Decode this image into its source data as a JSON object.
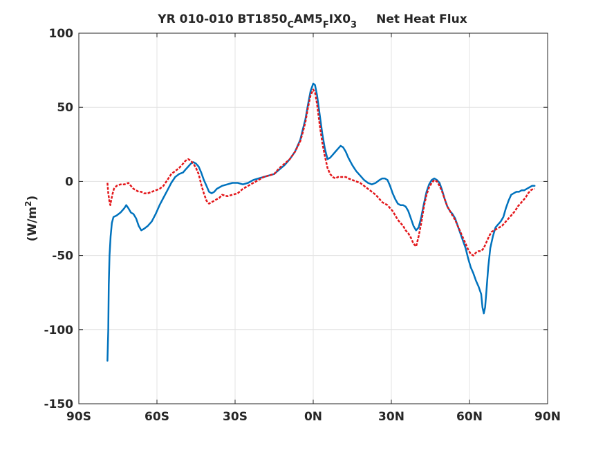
{
  "chart_data": {
    "type": "line",
    "title": {
      "prefix": "YR 010-010 BT1850",
      "sub1": "C",
      "mid1": "AM5",
      "sub2": "F",
      "mid2": "IX0",
      "sub3": "3",
      "suffix": "Net Heat Flux"
    },
    "ylabel": "(W/m",
    "ylabel_sup": "2",
    "ylabel_close": ")",
    "xlabel": "",
    "xlim": [
      -90,
      90
    ],
    "ylim": [
      -150,
      100
    ],
    "grid": true,
    "xticks": [
      {
        "value": -90,
        "label": "90S"
      },
      {
        "value": -60,
        "label": "60S"
      },
      {
        "value": -30,
        "label": "30S"
      },
      {
        "value": 0,
        "label": "0N"
      },
      {
        "value": 30,
        "label": "30N"
      },
      {
        "value": 60,
        "label": "60N"
      },
      {
        "value": 90,
        "label": "90N"
      }
    ],
    "yticks": [
      {
        "value": -150,
        "label": "-150"
      },
      {
        "value": -100,
        "label": "-100"
      },
      {
        "value": -50,
        "label": "-50"
      },
      {
        "value": 0,
        "label": "0"
      },
      {
        "value": 50,
        "label": "50"
      },
      {
        "value": 100,
        "label": "100"
      }
    ],
    "series": [
      {
        "color": "#0072BD",
        "style": "solid",
        "points": [
          [
            -79,
            -121
          ],
          [
            -78.7,
            -100
          ],
          [
            -78.5,
            -70
          ],
          [
            -78.2,
            -50
          ],
          [
            -77.8,
            -37
          ],
          [
            -77.3,
            -28
          ],
          [
            -76.7,
            -24
          ],
          [
            -75.5,
            -23
          ],
          [
            -74,
            -21
          ],
          [
            -72.5,
            -18
          ],
          [
            -71.8,
            -16
          ],
          [
            -71,
            -18
          ],
          [
            -70,
            -21
          ],
          [
            -69,
            -22
          ],
          [
            -68,
            -25
          ],
          [
            -67,
            -30
          ],
          [
            -66,
            -33
          ],
          [
            -65,
            -32
          ],
          [
            -63.5,
            -30
          ],
          [
            -62,
            -27
          ],
          [
            -60.5,
            -22
          ],
          [
            -59,
            -16
          ],
          [
            -57.5,
            -11
          ],
          [
            -56,
            -6
          ],
          [
            -54.5,
            -1
          ],
          [
            -53,
            3
          ],
          [
            -51.5,
            5
          ],
          [
            -50,
            6
          ],
          [
            -49,
            8
          ],
          [
            -48,
            10
          ],
          [
            -47,
            12
          ],
          [
            -46,
            13
          ],
          [
            -45,
            12
          ],
          [
            -44,
            10
          ],
          [
            -43,
            6
          ],
          [
            -42,
            1
          ],
          [
            -41,
            -3
          ],
          [
            -40,
            -7
          ],
          [
            -39,
            -8
          ],
          [
            -38,
            -7
          ],
          [
            -37,
            -5
          ],
          [
            -36,
            -4
          ],
          [
            -35,
            -3
          ],
          [
            -33,
            -2
          ],
          [
            -31,
            -1
          ],
          [
            -29,
            -1
          ],
          [
            -27,
            -2
          ],
          [
            -25,
            -1
          ],
          [
            -23,
            1
          ],
          [
            -21,
            2
          ],
          [
            -19,
            3
          ],
          [
            -17,
            4
          ],
          [
            -15,
            5
          ],
          [
            -13,
            8
          ],
          [
            -11,
            11
          ],
          [
            -9,
            15
          ],
          [
            -7,
            20
          ],
          [
            -5,
            28
          ],
          [
            -4,
            35
          ],
          [
            -3,
            42
          ],
          [
            -2,
            52
          ],
          [
            -1,
            61
          ],
          [
            0,
            66
          ],
          [
            0.7,
            65
          ],
          [
            1.5,
            58
          ],
          [
            2.5,
            45
          ],
          [
            3.5,
            32
          ],
          [
            4.5,
            22
          ],
          [
            5.5,
            15
          ],
          [
            6.5,
            16
          ],
          [
            7.5,
            18
          ],
          [
            8.5,
            20
          ],
          [
            9.5,
            22
          ],
          [
            10.5,
            24
          ],
          [
            11.5,
            23
          ],
          [
            12.5,
            20
          ],
          [
            13.5,
            16
          ],
          [
            15,
            11
          ],
          [
            16.5,
            7
          ],
          [
            18,
            4
          ],
          [
            19.5,
            1
          ],
          [
            21,
            -1
          ],
          [
            22.5,
            -2
          ],
          [
            24,
            -1
          ],
          [
            25.5,
            1
          ],
          [
            26.5,
            2
          ],
          [
            27.5,
            2
          ],
          [
            28.5,
            1
          ],
          [
            29.5,
            -3
          ],
          [
            30.5,
            -8
          ],
          [
            31.5,
            -12
          ],
          [
            32.5,
            -15
          ],
          [
            33.5,
            -16
          ],
          [
            34.5,
            -16
          ],
          [
            35.5,
            -17
          ],
          [
            36.5,
            -20
          ],
          [
            37.5,
            -25
          ],
          [
            38.5,
            -30
          ],
          [
            39.5,
            -33
          ],
          [
            40.5,
            -31
          ],
          [
            41.5,
            -24
          ],
          [
            42.5,
            -15
          ],
          [
            43.5,
            -7
          ],
          [
            44.5,
            -2
          ],
          [
            45.5,
            1
          ],
          [
            46.5,
            2
          ],
          [
            47.5,
            1
          ],
          [
            48.5,
            -1
          ],
          [
            49.5,
            -6
          ],
          [
            50.5,
            -12
          ],
          [
            51.5,
            -17
          ],
          [
            52.5,
            -20
          ],
          [
            53.5,
            -22
          ],
          [
            54.5,
            -25
          ],
          [
            55.5,
            -30
          ],
          [
            56.5,
            -35
          ],
          [
            57.5,
            -40
          ],
          [
            58.5,
            -45
          ],
          [
            59.5,
            -52
          ],
          [
            60.5,
            -58
          ],
          [
            61.5,
            -62
          ],
          [
            62.5,
            -67
          ],
          [
            63.5,
            -71
          ],
          [
            64.5,
            -76
          ],
          [
            65,
            -85
          ],
          [
            65.5,
            -89
          ],
          [
            66,
            -85
          ],
          [
            66.5,
            -74
          ],
          [
            67.2,
            -58
          ],
          [
            68,
            -45
          ],
          [
            69,
            -37
          ],
          [
            70,
            -31
          ],
          [
            71,
            -29
          ],
          [
            72,
            -27
          ],
          [
            73,
            -24
          ],
          [
            74,
            -18
          ],
          [
            75,
            -13
          ],
          [
            76,
            -9
          ],
          [
            77,
            -8
          ],
          [
            78,
            -7
          ],
          [
            79,
            -7
          ],
          [
            80,
            -6
          ],
          [
            81,
            -6
          ],
          [
            82,
            -5
          ],
          [
            83,
            -4
          ],
          [
            84,
            -3
          ],
          [
            85,
            -3
          ]
        ]
      },
      {
        "color": "#E3161A",
        "style": "dashed",
        "points": [
          [
            -79,
            -1
          ],
          [
            -78.7,
            -8
          ],
          [
            -78.3,
            -13
          ],
          [
            -77.9,
            -16
          ],
          [
            -77.5,
            -12
          ],
          [
            -77,
            -8
          ],
          [
            -76.5,
            -5
          ],
          [
            -75.5,
            -3
          ],
          [
            -74,
            -2
          ],
          [
            -72.5,
            -2
          ],
          [
            -71,
            -1
          ],
          [
            -70,
            -3
          ],
          [
            -69,
            -5
          ],
          [
            -68,
            -6
          ],
          [
            -67,
            -7
          ],
          [
            -66,
            -7
          ],
          [
            -65,
            -8
          ],
          [
            -63.5,
            -8
          ],
          [
            -62,
            -7
          ],
          [
            -60.5,
            -6
          ],
          [
            -59,
            -5
          ],
          [
            -57.5,
            -3
          ],
          [
            -56,
            1
          ],
          [
            -54.5,
            5
          ],
          [
            -53,
            7
          ],
          [
            -51.5,
            9
          ],
          [
            -50,
            12
          ],
          [
            -49,
            14
          ],
          [
            -48,
            15
          ],
          [
            -47,
            14
          ],
          [
            -46,
            12
          ],
          [
            -45,
            9
          ],
          [
            -44,
            5
          ],
          [
            -43,
            -2
          ],
          [
            -42,
            -8
          ],
          [
            -41,
            -13
          ],
          [
            -40,
            -15
          ],
          [
            -39,
            -14
          ],
          [
            -38,
            -13
          ],
          [
            -37,
            -12
          ],
          [
            -36,
            -11
          ],
          [
            -35,
            -9
          ],
          [
            -33,
            -10
          ],
          [
            -31,
            -9
          ],
          [
            -29,
            -8
          ],
          [
            -27,
            -5
          ],
          [
            -25,
            -3
          ],
          [
            -23,
            -1
          ],
          [
            -21,
            1
          ],
          [
            -19,
            3
          ],
          [
            -17,
            4
          ],
          [
            -15,
            5
          ],
          [
            -13,
            9
          ],
          [
            -11,
            12
          ],
          [
            -9,
            15
          ],
          [
            -7,
            20
          ],
          [
            -5,
            27
          ],
          [
            -4,
            33
          ],
          [
            -3,
            40
          ],
          [
            -2,
            50
          ],
          [
            -1,
            58
          ],
          [
            0,
            62
          ],
          [
            0.7,
            60
          ],
          [
            1.5,
            52
          ],
          [
            2.5,
            38
          ],
          [
            3.5,
            26
          ],
          [
            4.5,
            17
          ],
          [
            5.5,
            9
          ],
          [
            6.5,
            5
          ],
          [
            7.5,
            3
          ],
          [
            8.5,
            2
          ],
          [
            9.5,
            3
          ],
          [
            10.5,
            3
          ],
          [
            11.5,
            3
          ],
          [
            12.5,
            3
          ],
          [
            13.5,
            2
          ],
          [
            15,
            1
          ],
          [
            16.5,
            0
          ],
          [
            18,
            -1
          ],
          [
            19.5,
            -3
          ],
          [
            21,
            -5
          ],
          [
            22.5,
            -7
          ],
          [
            24,
            -9
          ],
          [
            25.5,
            -12
          ],
          [
            26.5,
            -14
          ],
          [
            27.5,
            -15
          ],
          [
            28.5,
            -16
          ],
          [
            29.5,
            -18
          ],
          [
            30.5,
            -20
          ],
          [
            31.5,
            -23
          ],
          [
            32.5,
            -26
          ],
          [
            33.5,
            -28
          ],
          [
            34.5,
            -30
          ],
          [
            35.5,
            -33
          ],
          [
            36.5,
            -35
          ],
          [
            37.5,
            -38
          ],
          [
            38.5,
            -42
          ],
          [
            39.5,
            -44
          ],
          [
            40.5,
            -37
          ],
          [
            41.5,
            -28
          ],
          [
            42.5,
            -17
          ],
          [
            43.5,
            -9
          ],
          [
            44.5,
            -4
          ],
          [
            45.5,
            -1
          ],
          [
            46.5,
            1
          ],
          [
            47.5,
            0
          ],
          [
            48.5,
            -3
          ],
          [
            49.5,
            -7
          ],
          [
            50.5,
            -12
          ],
          [
            51.5,
            -17
          ],
          [
            52.5,
            -20
          ],
          [
            53.5,
            -23
          ],
          [
            54.5,
            -26
          ],
          [
            55.5,
            -30
          ],
          [
            56.5,
            -34
          ],
          [
            57.5,
            -38
          ],
          [
            58.5,
            -42
          ],
          [
            59.5,
            -46
          ],
          [
            60.5,
            -49
          ],
          [
            61.5,
            -50
          ],
          [
            62.5,
            -48
          ],
          [
            63.5,
            -47
          ],
          [
            64.5,
            -47
          ],
          [
            65.5,
            -45
          ],
          [
            66.5,
            -41
          ],
          [
            67.5,
            -37
          ],
          [
            68.5,
            -34
          ],
          [
            69.5,
            -33
          ],
          [
            70.5,
            -32
          ],
          [
            71.5,
            -31
          ],
          [
            72.5,
            -30
          ],
          [
            73.5,
            -28
          ],
          [
            74.5,
            -26
          ],
          [
            75.5,
            -24
          ],
          [
            76.5,
            -22
          ],
          [
            77.5,
            -20
          ],
          [
            78.5,
            -17
          ],
          [
            79.5,
            -15
          ],
          [
            80.5,
            -13
          ],
          [
            81.5,
            -11
          ],
          [
            82.5,
            -8
          ],
          [
            83.5,
            -6
          ],
          [
            84.5,
            -5
          ],
          [
            85,
            -5
          ]
        ]
      }
    ]
  }
}
